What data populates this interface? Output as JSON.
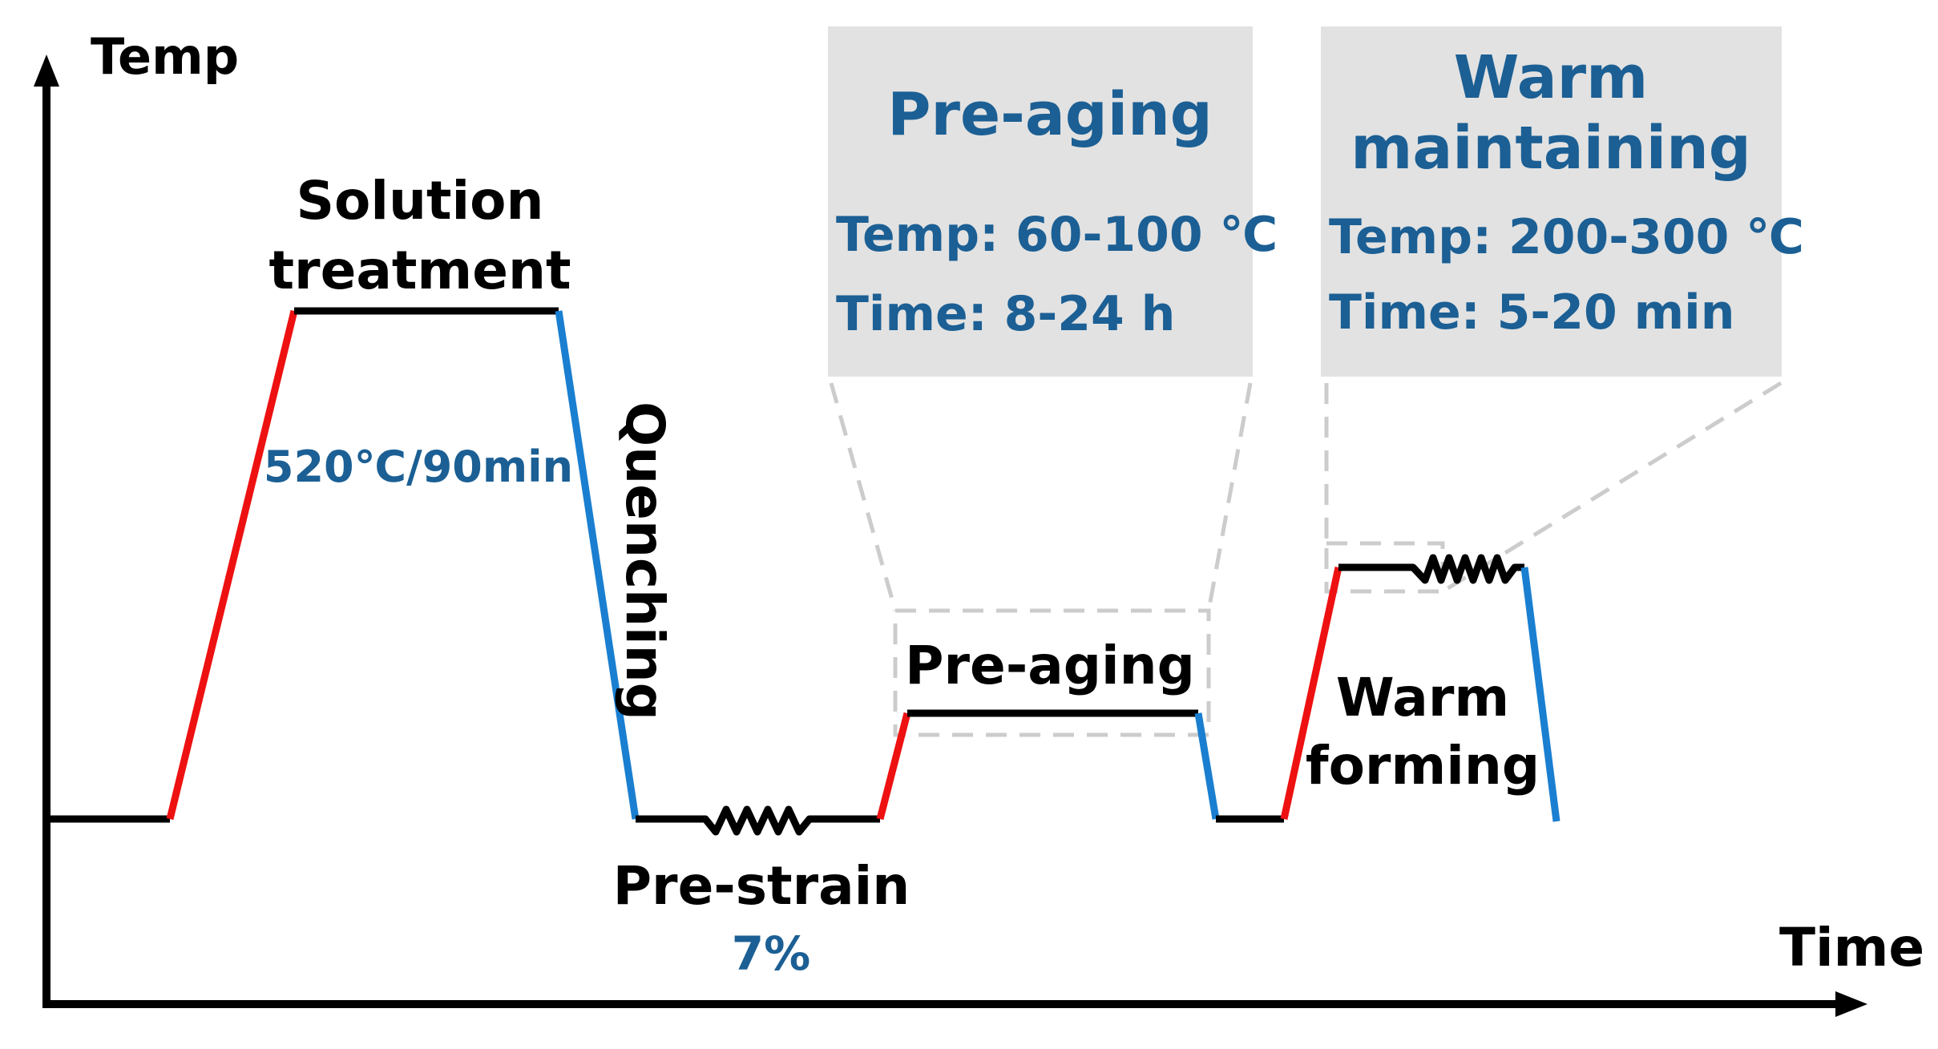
{
  "axes": {
    "y_label": "Temp",
    "x_label": "Time"
  },
  "stages": {
    "solution_title_line1": "Solution",
    "solution_title_line2": "treatment",
    "solution_params": "520℃/90min",
    "quenching": "Quenching",
    "prestrain": "Pre-strain",
    "prestrain_value": "7%",
    "preaging": "Pre-aging",
    "warm_forming_line1": "Warm",
    "warm_forming_line2": "forming"
  },
  "detail_boxes": {
    "preaging": {
      "title": "Pre-aging",
      "temp": "Temp: 60-100 ℃",
      "time": "Time: 8-24 h"
    },
    "warm": {
      "title_line1": "Warm",
      "title_line2": "maintaining",
      "temp": "Temp: 200-300 ℃",
      "time": "Time: 5-20 min"
    }
  },
  "colors": {
    "heating": "#ee1111",
    "cooling": "#1a7fd0",
    "hold": "#000000",
    "param_text": "#1b5f94",
    "box_fill": "#e2e2e2",
    "dashed": "#cccccc"
  }
}
